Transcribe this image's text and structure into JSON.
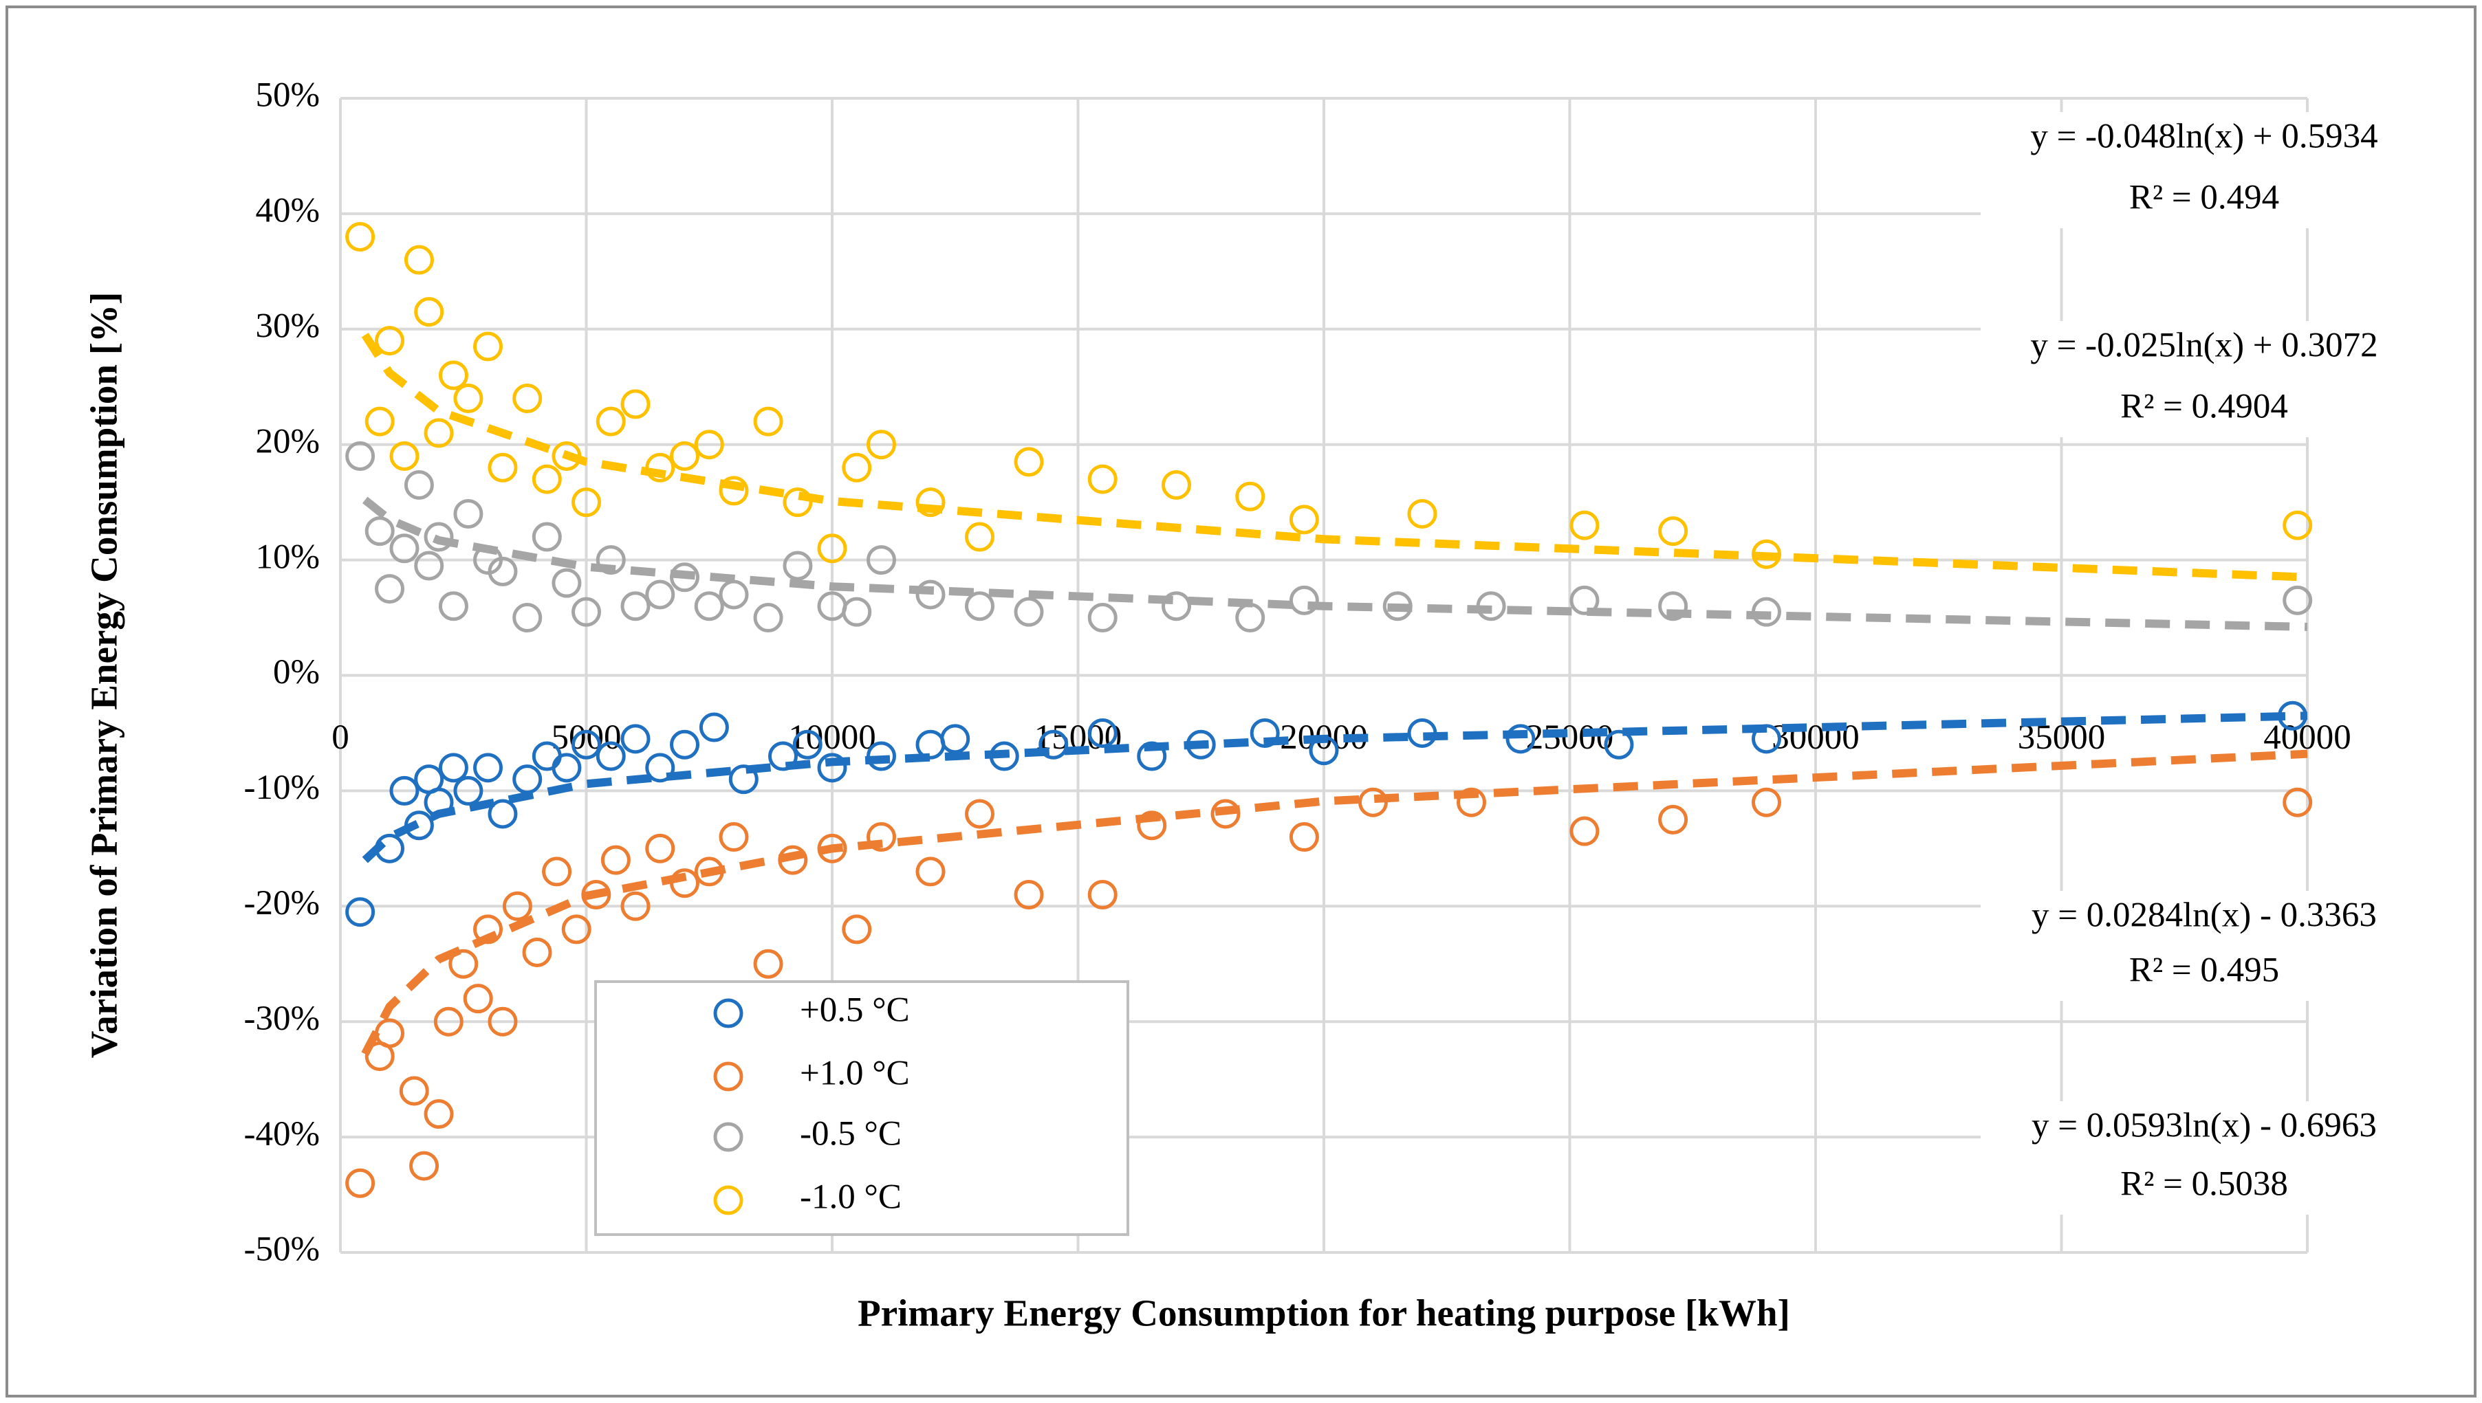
{
  "chart_data": {
    "type": "scatter",
    "xlabel": "Primary Energy Consumption for heating purpose [kWh]",
    "ylabel": "Variation of Primary Energy Consumption [%]",
    "xlim": [
      0,
      40000
    ],
    "xticks": [
      0,
      5000,
      10000,
      15000,
      20000,
      25000,
      30000,
      35000,
      40000
    ],
    "ylim": [
      -50,
      50
    ],
    "yticks": [
      {
        "value": 50,
        "label": "50%"
      },
      {
        "value": 40,
        "label": "40%"
      },
      {
        "value": 30,
        "label": "30%"
      },
      {
        "value": 20,
        "label": "20%"
      },
      {
        "value": 10,
        "label": "10%"
      },
      {
        "value": 0,
        "label": "0%"
      },
      {
        "value": -10,
        "label": "-10%"
      },
      {
        "value": -20,
        "label": "-20%"
      },
      {
        "value": -30,
        "label": "-30%"
      },
      {
        "value": -40,
        "label": "-40%"
      },
      {
        "value": -50,
        "label": "-50%"
      }
    ],
    "grid": true,
    "series": [
      {
        "name": "+0.5 °C",
        "color": "#1f70c1",
        "x": [
          400,
          1000,
          1300,
          1600,
          1800,
          2000,
          2300,
          2600,
          3000,
          3300,
          3800,
          4200,
          4600,
          5000,
          5500,
          6000,
          6500,
          7000,
          7600,
          8200,
          9000,
          9500,
          10000,
          11000,
          12000,
          12500,
          13500,
          14500,
          15500,
          16500,
          17500,
          18800,
          20000,
          22000,
          24000,
          26000,
          29000,
          39700
        ],
        "values": [
          -20.5,
          -15,
          -10,
          -13,
          -9,
          -11,
          -8,
          -10,
          -8,
          -12,
          -9,
          -7,
          -8,
          -6,
          -7,
          -5.5,
          -8,
          -6,
          -4.5,
          -9,
          -7,
          -6,
          -8,
          -7,
          -6,
          -5.5,
          -7,
          -6,
          -5,
          -7,
          -6,
          -5,
          -6.5,
          -5,
          -5.5,
          -6,
          -5.5,
          -3.5
        ],
        "trendline": {
          "x": [
            500,
            1000,
            2000,
            5000,
            10000,
            20000,
            40000
          ],
          "values": [
            -16.0,
            -14.0,
            -12.0,
            -9.4,
            -7.5,
            -5.5,
            -3.5
          ]
        },
        "equation": "y = 0.0284ln(x) - 0.3363",
        "r2": "R² = 0.495"
      },
      {
        "name": "+1.0 °C",
        "color": "#ed7d31",
        "x": [
          400,
          800,
          1000,
          1500,
          1700,
          2000,
          2200,
          2500,
          2800,
          3000,
          3300,
          3600,
          4000,
          4400,
          4800,
          5200,
          5600,
          6000,
          6500,
          7000,
          7500,
          8000,
          8700,
          9200,
          10000,
          10500,
          11000,
          12000,
          13000,
          14000,
          15500,
          16500,
          18000,
          19600,
          21000,
          23000,
          25300,
          27100,
          29000,
          39800
        ],
        "values": [
          -44,
          -33,
          -31,
          -36,
          -42.5,
          -38,
          -30,
          -25,
          -28,
          -22,
          -30,
          -20,
          -24,
          -17,
          -22,
          -19,
          -16,
          -20,
          -15,
          -18,
          -17,
          -14,
          -25,
          -16,
          -15,
          -22,
          -14,
          -17,
          -12,
          -19,
          -19,
          -13,
          -12,
          -14,
          -11,
          -11,
          -13.5,
          -12.5,
          -11,
          -11
        ],
        "trendline": {
          "x": [
            500,
            1000,
            2000,
            5000,
            10000,
            20000,
            40000
          ],
          "values": [
            -32.8,
            -28.7,
            -24.6,
            -19.1,
            -15.0,
            -10.9,
            -6.8
          ]
        },
        "equation": "y = 0.0593ln(x) - 0.6963",
        "r2": "R² = 0.5038"
      },
      {
        "name": "-0.5 °C",
        "color": "#a5a5a5",
        "x": [
          400,
          800,
          1000,
          1300,
          1600,
          1800,
          2000,
          2300,
          2600,
          3000,
          3300,
          3800,
          4200,
          4600,
          5000,
          5500,
          6000,
          6500,
          7000,
          7500,
          8000,
          8700,
          9300,
          10000,
          10500,
          11000,
          12000,
          13000,
          14000,
          15500,
          17000,
          18500,
          19600,
          21500,
          23400,
          25300,
          27100,
          29000,
          39800
        ],
        "values": [
          19,
          12.5,
          7.5,
          11,
          16.5,
          9.5,
          12,
          6,
          14,
          10,
          9,
          5,
          12,
          8,
          5.5,
          10,
          6,
          7,
          8.5,
          6,
          7,
          5,
          9.5,
          6,
          5.5,
          10,
          7,
          6,
          5.5,
          5,
          6,
          5,
          6.5,
          6,
          6,
          6.5,
          6,
          5.5,
          6.5
        ],
        "trendline": {
          "x": [
            500,
            1000,
            2000,
            5000,
            10000,
            20000,
            40000
          ],
          "values": [
            15.2,
            13.5,
            11.7,
            9.4,
            7.7,
            6.0,
            4.2
          ]
        },
        "equation": "y = -0.025ln(x) + 0.3072",
        "r2": "R² = 0.4904"
      },
      {
        "name": "-1.0 °C",
        "color": "#ffc000",
        "x": [
          400,
          800,
          1000,
          1300,
          1600,
          1800,
          2000,
          2300,
          2600,
          3000,
          3300,
          3800,
          4200,
          4600,
          5000,
          5500,
          6000,
          6500,
          7000,
          7500,
          8000,
          8700,
          9300,
          10000,
          10500,
          11000,
          12000,
          13000,
          14000,
          15500,
          17000,
          18500,
          19600,
          22000,
          25300,
          27100,
          29000,
          39800
        ],
        "values": [
          38,
          22,
          29,
          19,
          36,
          31.5,
          21,
          26,
          24,
          28.5,
          18,
          24,
          17,
          19,
          15,
          22,
          23.5,
          18,
          19,
          20,
          16,
          22,
          15,
          11,
          18,
          20,
          15,
          12,
          18.5,
          17,
          16.5,
          15.5,
          13.5,
          14,
          13,
          12.5,
          10.5,
          13
        ],
        "trendline": {
          "x": [
            500,
            1000,
            2000,
            5000,
            10000,
            20000,
            40000
          ],
          "values": [
            29.5,
            26.2,
            22.9,
            18.5,
            15.1,
            11.8,
            8.5
          ]
        },
        "equation": "y = -0.048ln(x) + 0.5934",
        "r2": "R² = 0.494"
      }
    ]
  }
}
